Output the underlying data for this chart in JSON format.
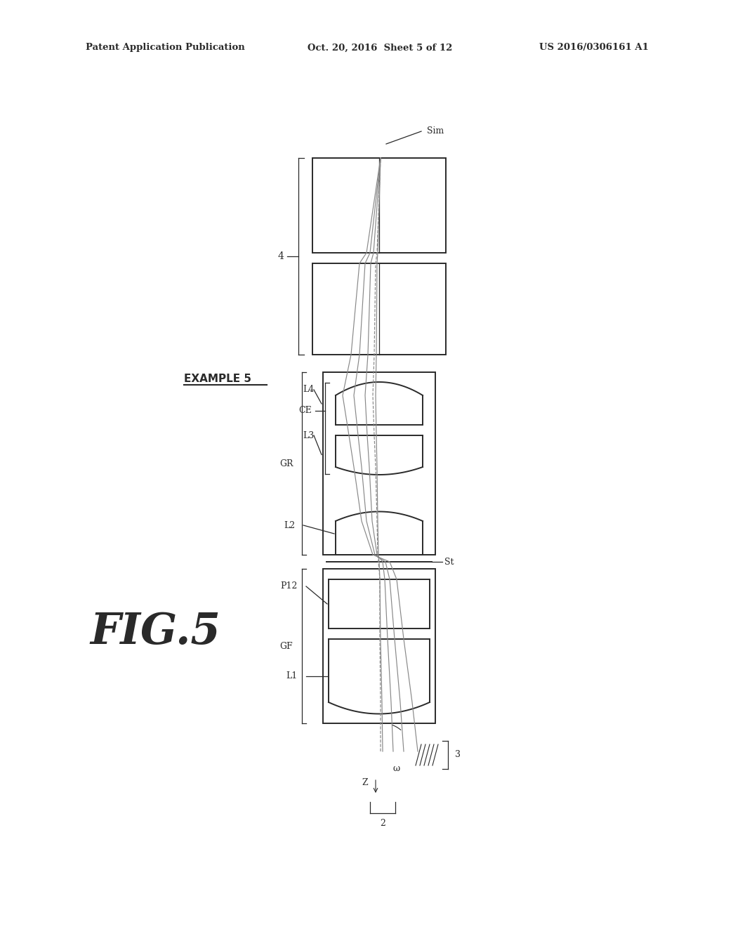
{
  "title_left": "Patent Application Publication",
  "title_center": "Oct. 20, 2016  Sheet 5 of 12",
  "title_right": "US 2016/0306161 A1",
  "fig_label": "FIG.5",
  "example_label": "EXAMPLE 5",
  "bg_color": "#ffffff",
  "line_color": "#2a2a2a",
  "ray_color": "#888888",
  "note": "Optical lens diagram for endoscope objective lens - Example 5"
}
